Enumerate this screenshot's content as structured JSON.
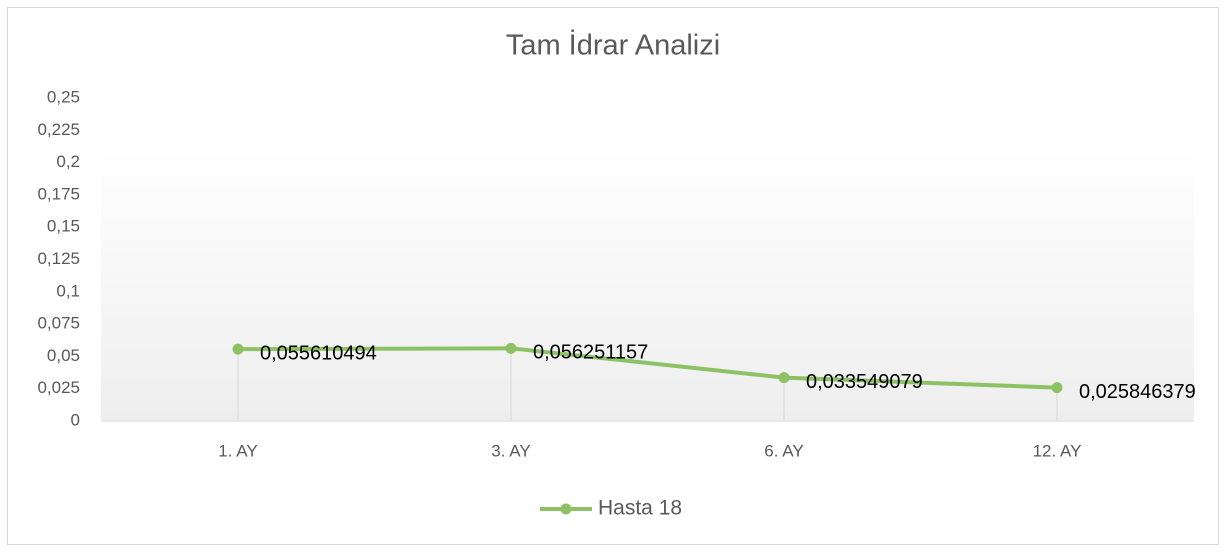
{
  "chart_data": {
    "type": "line",
    "title": "Tam İdrar Analizi",
    "categories": [
      "1. AY",
      "3. AY",
      "6. AY",
      "12. AY"
    ],
    "series": [
      {
        "name": "Hasta 18",
        "color": "#8dc264",
        "values": [
          0.055610494,
          0.056251157,
          0.033549079,
          0.025846379
        ],
        "value_labels": [
          "0,055610494",
          "0,056251157",
          "0,033549079",
          "0,025846379"
        ]
      }
    ],
    "ylim": [
      0,
      0.25
    ],
    "yticks": [
      0,
      {
        "value": 0.025,
        "label": "0,025"
      },
      {
        "value": 0.05,
        "label": "0,05"
      },
      {
        "value": 0.075,
        "label": "0,075"
      },
      {
        "value": 0.1,
        "label": "0,1"
      },
      {
        "value": 0.125,
        "label": "0,125"
      },
      {
        "value": 0.15,
        "label": "0,15"
      },
      {
        "value": 0.175,
        "label": "0,175"
      },
      {
        "value": 0.2,
        "label": "0,2"
      },
      {
        "value": 0.225,
        "label": "0,225"
      },
      {
        "value": 0.25,
        "label": "0,25"
      }
    ],
    "legend": "bottom"
  }
}
